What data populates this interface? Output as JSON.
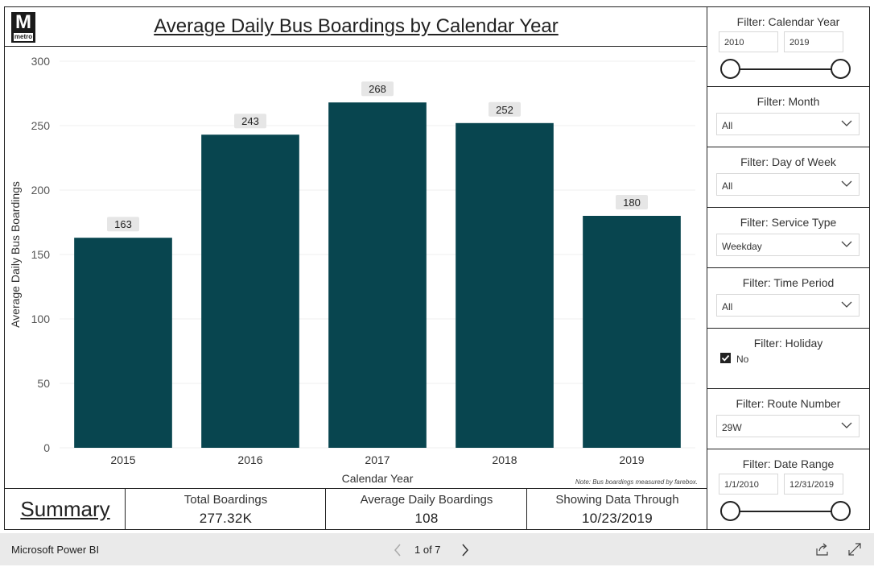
{
  "header": {
    "logo_text": "M",
    "logo_word": "metro",
    "title": "Average Daily Bus Boardings by Calendar Year"
  },
  "chart_data": {
    "type": "bar",
    "title": "Average Daily Bus Boardings by Calendar Year",
    "categories": [
      "2015",
      "2016",
      "2017",
      "2018",
      "2019"
    ],
    "values": [
      163,
      243,
      268,
      252,
      180
    ],
    "data_labels": [
      "163",
      "243",
      "268",
      "252",
      "180"
    ],
    "xlabel": "Calendar Year",
    "ylabel": "Average Daily Bus Boardings",
    "ylim": [
      0,
      300
    ],
    "yticks": [
      0,
      50,
      100,
      150,
      200,
      250,
      300
    ],
    "ytick_labels": [
      "0",
      "50",
      "100",
      "150",
      "200",
      "250",
      "300"
    ],
    "grid": true,
    "bar_color": "#08454f",
    "note": "Note: Bus boardings measured by farebox."
  },
  "summary": {
    "label": "Summary"
  },
  "cards": {
    "total": {
      "label": "Total Boardings",
      "value": "277.32K"
    },
    "avg": {
      "label": "Average Daily Boardings",
      "value": "108"
    },
    "through": {
      "label": "Showing Data Through",
      "value": "10/23/2019"
    }
  },
  "filters": {
    "year": {
      "title": "Filter: Calendar Year",
      "from": "2010",
      "to": "2019"
    },
    "month": {
      "title": "Filter: Month",
      "value": "All"
    },
    "dow": {
      "title": "Filter: Day of Week",
      "value": "All"
    },
    "service": {
      "title": "Filter: Service Type",
      "value": "Weekday"
    },
    "period": {
      "title": "Filter: Time Period",
      "value": "All"
    },
    "holiday": {
      "title": "Filter: Holiday",
      "option": "No",
      "checked": true
    },
    "route": {
      "title": "Filter: Route Number",
      "value": "29W"
    },
    "date": {
      "title": "Filter: Date Range",
      "from": "1/1/2010",
      "to": "12/31/2019"
    }
  },
  "footer": {
    "brand": "Microsoft Power BI",
    "page": "1 of 7"
  },
  "icons": {
    "prev": "chevron-left-icon",
    "next": "chevron-right-icon",
    "share": "share-icon",
    "expand": "expand-icon",
    "dropdown": "chevron-down-icon",
    "check": "check-icon"
  }
}
